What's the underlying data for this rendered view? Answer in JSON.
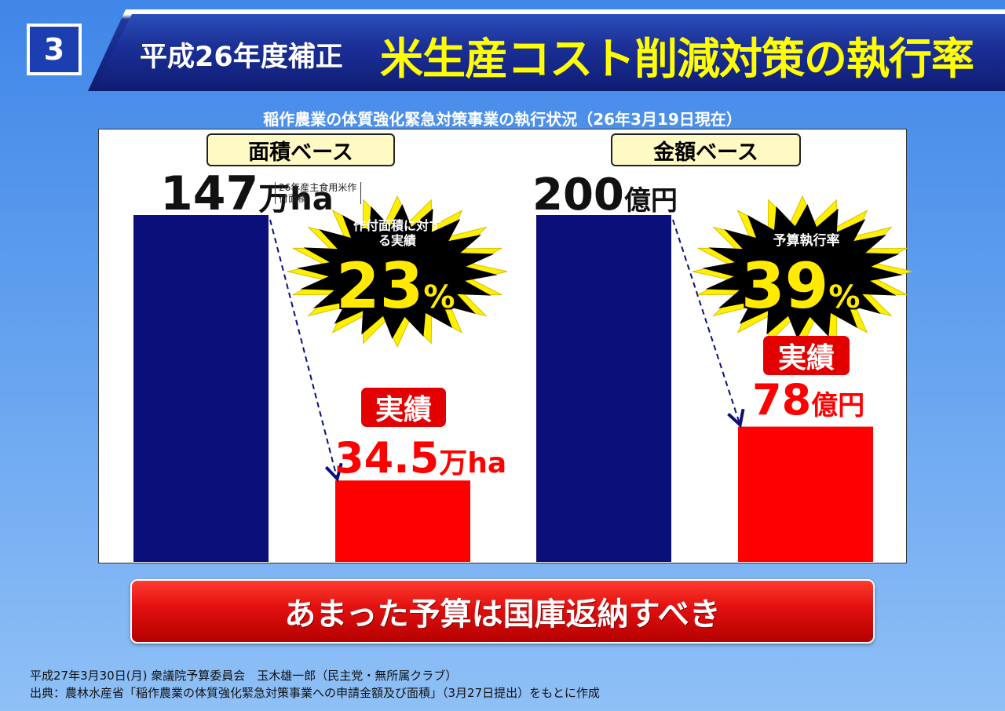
{
  "header": {
    "number": "3",
    "subtitle": "平成26年度補正",
    "title": "米生産コスト削減対策の執行率"
  },
  "chart_caption": "稲作農業の体質強化緊急対策事業の執行状況（26年3月19日現在）",
  "chart_data": [
    {
      "type": "bar",
      "group_label": "面積ベース",
      "categories": [
        "",
        "実績"
      ],
      "values": [
        147,
        34.5
      ],
      "unit": "万ha",
      "value_labels": [
        "147",
        "34.5"
      ],
      "colors": [
        "#0a0f7a",
        "#ff0000"
      ],
      "note": "26年産主食用米作付面積",
      "burst": {
        "caption": "作付面積に対する実績",
        "value": "23",
        "unit": "%"
      }
    },
    {
      "type": "bar",
      "group_label": "金額ベース",
      "categories": [
        "",
        "実績"
      ],
      "values": [
        200,
        78
      ],
      "unit": "億円",
      "value_labels": [
        "200",
        "78"
      ],
      "colors": [
        "#0a0f7a",
        "#ff0000"
      ],
      "burst": {
        "caption": "予算執行率",
        "value": "39",
        "unit": "%"
      }
    }
  ],
  "cta_text": "あまった予算は国庫返納すべき",
  "footer": {
    "line1": "平成27年3月30日(月) 衆議院予算委員会　玉木雄一郎（民主党・無所属クラブ）",
    "line2": "出典：農林水産省「稲作農業の体質強化緊急対策事業への申請金額及び面積」（3月27日提出）をもとに作成"
  }
}
